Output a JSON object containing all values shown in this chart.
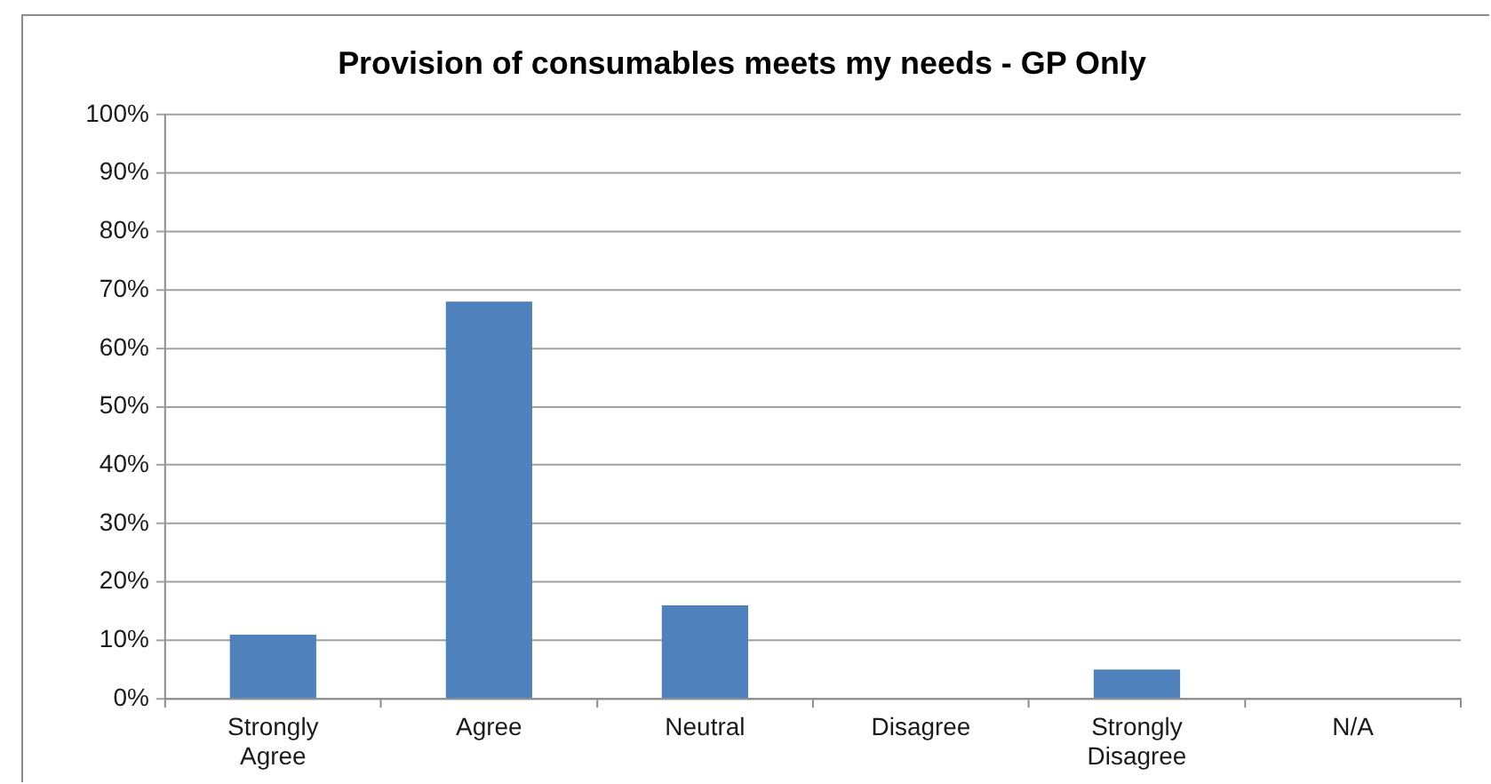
{
  "chart_data": {
    "type": "bar",
    "title": "Provision of consumables meets my needs - GP Only",
    "categories": [
      "Strongly Agree",
      "Agree",
      "Neutral",
      "Disagree",
      "Strongly Disagree",
      "N/A"
    ],
    "values": [
      11,
      68,
      16,
      0,
      5,
      0
    ],
    "color": "#4f81bd",
    "ylim": [
      0,
      100
    ],
    "yticks": [
      {
        "value": 0,
        "label": "0%"
      },
      {
        "value": 10,
        "label": "10%"
      },
      {
        "value": 20,
        "label": "20%"
      },
      {
        "value": 30,
        "label": "30%"
      },
      {
        "value": 40,
        "label": "40%"
      },
      {
        "value": 50,
        "label": "50%"
      },
      {
        "value": 60,
        "label": "60%"
      },
      {
        "value": 70,
        "label": "70%"
      },
      {
        "value": 80,
        "label": "80%"
      },
      {
        "value": 90,
        "label": "90%"
      },
      {
        "value": 100,
        "label": "100%"
      }
    ],
    "grid": "y"
  }
}
